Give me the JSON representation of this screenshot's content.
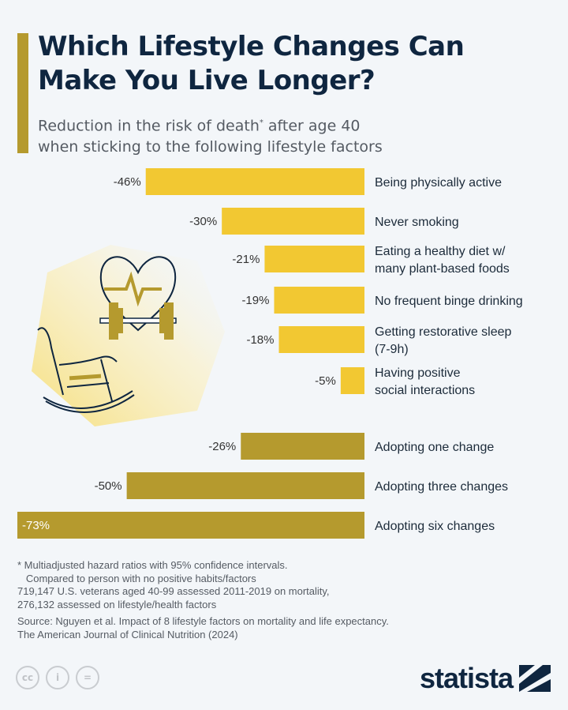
{
  "title_line1": "Which Lifestyle Changes Can",
  "title_line2": "Make You Live Longer?",
  "subtitle_line1_a": "Reduction in the risk of death",
  "subtitle_asterisk": "*",
  "subtitle_line1_b": " after age 40",
  "subtitle_line2": "when sticking to the following lifestyle factors",
  "colors": {
    "factor": "#f2c832",
    "changes": "#b59a2e",
    "title": "#0f2640",
    "background": "#f3f6f9"
  },
  "chart_data": {
    "type": "bar",
    "orientation": "horizontal",
    "unit": "%",
    "categories": [
      [
        "Being physically active"
      ],
      [
        "Never smoking"
      ],
      [
        "Eating a healthy diet w/",
        "many plant-based foods"
      ],
      [
        "No frequent binge drinking"
      ],
      [
        "Getting restorative sleep",
        "(7-9h)"
      ],
      [
        "Having positive",
        "social interactions"
      ],
      [
        "Adopting one change"
      ],
      [
        "Adopting three changes"
      ],
      [
        "Adopting six changes"
      ]
    ],
    "values": [
      -46,
      -30,
      -21,
      -19,
      -18,
      -5,
      -26,
      -50,
      -73
    ],
    "labels": [
      "-46%",
      "-30%",
      "-21%",
      "-19%",
      "-18%",
      "-5%",
      "-26%",
      "-50%",
      "-73%"
    ],
    "groups": [
      "factor",
      "factor",
      "factor",
      "factor",
      "factor",
      "factor",
      "changes",
      "changes",
      "changes"
    ],
    "xlim": [
      -73,
      0
    ]
  },
  "notes": [
    "* Multiadjusted hazard ratios with 95% confidence intervals.",
    "   Compared to person with no positive habits/factors",
    "719,147 U.S. veterans aged 40-99 assessed 2011-2019 on mortality,",
    "276,132 assessed on lifestyle/health factors"
  ],
  "source": [
    "Source: Nguyen et al. Impact of 8 lifestyle factors on mortality and life expectancy.",
    "The American Journal of Clinical Nutrition (2024)"
  ],
  "license_icons": [
    "cc-icon",
    "attribution-icon",
    "no-derivatives-icon"
  ],
  "license_glyphs": [
    "cc",
    "i",
    "="
  ],
  "logo": "statista"
}
